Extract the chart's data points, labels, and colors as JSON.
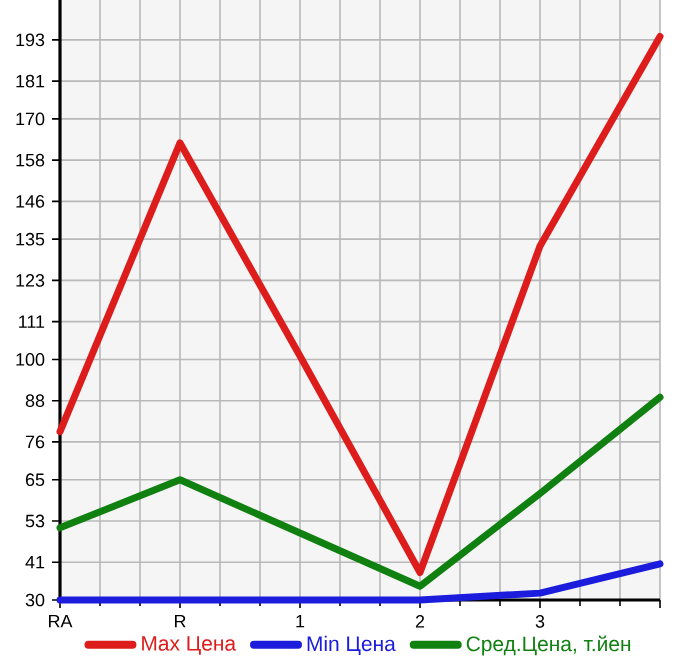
{
  "chart_data": {
    "type": "line",
    "categories": [
      "RA",
      "R",
      "1",
      "2",
      "3",
      null
    ],
    "series": [
      {
        "name": "Max Цена",
        "color": "#dd1c1c",
        "values": [
          79,
          163,
          101,
          38,
          133,
          194
        ]
      },
      {
        "name": "Min Цена",
        "color": "#1c1cdd",
        "values": [
          30,
          30,
          30,
          30,
          32,
          40.5
        ]
      },
      {
        "name": "Сред.Цена, т.йен",
        "color": "#108010",
        "values": [
          51,
          65,
          49.5,
          34,
          61,
          89
        ]
      }
    ],
    "ylim": [
      30,
      204.6
    ],
    "yticks": [
      30,
      41,
      53,
      65,
      76,
      88,
      100,
      111,
      123,
      135,
      146,
      158,
      170,
      181,
      193
    ],
    "grid": true,
    "legend": "bottom",
    "marker": "none",
    "line_style": "solid"
  }
}
